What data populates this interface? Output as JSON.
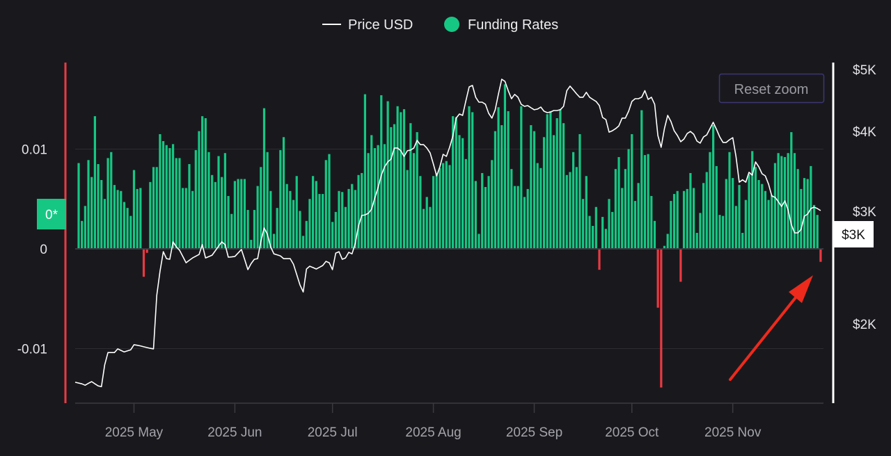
{
  "legend": {
    "price_label": "Price USD",
    "funding_label": "Funding Rates"
  },
  "reset_zoom_label": "Reset zoom",
  "crosshair": {
    "left_label": "0*",
    "right_label": "$3K"
  },
  "colors": {
    "background": "#19191d",
    "positive_bar": "#16c784",
    "negative_bar": "#ea3943",
    "price_line": "#ffffff",
    "left_axis_line": "#ea3943",
    "right_axis_line": "#ffffff",
    "annotation_arrow": "#ee2a1c",
    "reset_border": "#3c3575"
  },
  "chart_data": {
    "type": "bar+line",
    "title": "",
    "grid": true,
    "legend_position": "top-center",
    "x_axis": {
      "tick_labels": [
        "2025 May",
        "2025 Jun",
        "2025 Jul",
        "2025 Aug",
        "2025 Sep",
        "2025 Oct",
        "2025 Nov"
      ],
      "tick_dates": [
        "2025-05-01",
        "2025-06-01",
        "2025-07-01",
        "2025-08-01",
        "2025-09-01",
        "2025-10-01",
        "2025-11-01"
      ]
    },
    "y_left": {
      "tick_labels": [
        "0.01",
        "0",
        "-0.01"
      ],
      "tick_values": [
        0.01,
        0,
        -0.01
      ],
      "range": [
        -0.0155,
        0.0185
      ]
    },
    "y_right": {
      "tick_labels": [
        "$5K",
        "$4K",
        "$3K",
        "$2K"
      ],
      "tick_values": [
        5000,
        4000,
        3000,
        2000
      ],
      "scale": "log",
      "range": [
        1450,
        5300
      ]
    },
    "dates": [
      "2025-04-14",
      "2025-04-15",
      "2025-04-16",
      "2025-04-17",
      "2025-04-18",
      "2025-04-19",
      "2025-04-20",
      "2025-04-21",
      "2025-04-22",
      "2025-04-23",
      "2025-04-24",
      "2025-04-25",
      "2025-04-26",
      "2025-04-27",
      "2025-04-28",
      "2025-04-29",
      "2025-04-30",
      "2025-05-01",
      "2025-05-02",
      "2025-05-03",
      "2025-05-04",
      "2025-05-05",
      "2025-05-06",
      "2025-05-07",
      "2025-05-08",
      "2025-05-09",
      "2025-05-10",
      "2025-05-11",
      "2025-05-12",
      "2025-05-13",
      "2025-05-14",
      "2025-05-15",
      "2025-05-16",
      "2025-05-17",
      "2025-05-18",
      "2025-05-19",
      "2025-05-20",
      "2025-05-21",
      "2025-05-22",
      "2025-05-23",
      "2025-05-24",
      "2025-05-25",
      "2025-05-26",
      "2025-05-27",
      "2025-05-28",
      "2025-05-29",
      "2025-05-30",
      "2025-05-31",
      "2025-06-01",
      "2025-06-02",
      "2025-06-03",
      "2025-06-04",
      "2025-06-05",
      "2025-06-06",
      "2025-06-07",
      "2025-06-08",
      "2025-06-09",
      "2025-06-10",
      "2025-06-11",
      "2025-06-12",
      "2025-06-13",
      "2025-06-14",
      "2025-06-15",
      "2025-06-16",
      "2025-06-17",
      "2025-06-18",
      "2025-06-19",
      "2025-06-20",
      "2025-06-21",
      "2025-06-22",
      "2025-06-23",
      "2025-06-24",
      "2025-06-25",
      "2025-06-26",
      "2025-06-27",
      "2025-06-28",
      "2025-06-29",
      "2025-06-30",
      "2025-07-01",
      "2025-07-02",
      "2025-07-03",
      "2025-07-04",
      "2025-07-05",
      "2025-07-06",
      "2025-07-07",
      "2025-07-08",
      "2025-07-09",
      "2025-07-10",
      "2025-07-11",
      "2025-07-12",
      "2025-07-13",
      "2025-07-14",
      "2025-07-15",
      "2025-07-16",
      "2025-07-17",
      "2025-07-18",
      "2025-07-19",
      "2025-07-20",
      "2025-07-21",
      "2025-07-22",
      "2025-07-23",
      "2025-07-24",
      "2025-07-25",
      "2025-07-26",
      "2025-07-27",
      "2025-07-28",
      "2025-07-29",
      "2025-07-30",
      "2025-07-31",
      "2025-08-01",
      "2025-08-02",
      "2025-08-03",
      "2025-08-04",
      "2025-08-05",
      "2025-08-06",
      "2025-08-07",
      "2025-08-08",
      "2025-08-09",
      "2025-08-10",
      "2025-08-11",
      "2025-08-12",
      "2025-08-13",
      "2025-08-14",
      "2025-08-15",
      "2025-08-16",
      "2025-08-17",
      "2025-08-18",
      "2025-08-19",
      "2025-08-20",
      "2025-08-21",
      "2025-08-22",
      "2025-08-23",
      "2025-08-24",
      "2025-08-25",
      "2025-08-26",
      "2025-08-27",
      "2025-08-28",
      "2025-08-29",
      "2025-08-30",
      "2025-08-31",
      "2025-09-01",
      "2025-09-02",
      "2025-09-03",
      "2025-09-04",
      "2025-09-05",
      "2025-09-06",
      "2025-09-07",
      "2025-09-08",
      "2025-09-09",
      "2025-09-10",
      "2025-09-11",
      "2025-09-12",
      "2025-09-13",
      "2025-09-14",
      "2025-09-15",
      "2025-09-16",
      "2025-09-17",
      "2025-09-18",
      "2025-09-19",
      "2025-09-20",
      "2025-09-21",
      "2025-09-22",
      "2025-09-23",
      "2025-09-24",
      "2025-09-25",
      "2025-09-26",
      "2025-09-27",
      "2025-09-28",
      "2025-09-29",
      "2025-09-30",
      "2025-10-01",
      "2025-10-02",
      "2025-10-03",
      "2025-10-04",
      "2025-10-05",
      "2025-10-06",
      "2025-10-07",
      "2025-10-08",
      "2025-10-09",
      "2025-10-10",
      "2025-10-11",
      "2025-10-12",
      "2025-10-13",
      "2025-10-14",
      "2025-10-15",
      "2025-10-16",
      "2025-10-17",
      "2025-10-18",
      "2025-10-19",
      "2025-10-20",
      "2025-10-21",
      "2025-10-22",
      "2025-10-23",
      "2025-10-24",
      "2025-10-25",
      "2025-10-26",
      "2025-10-27",
      "2025-10-28",
      "2025-10-29",
      "2025-10-30",
      "2025-10-31",
      "2025-11-01",
      "2025-11-02",
      "2025-11-03",
      "2025-11-04",
      "2025-11-05",
      "2025-11-06",
      "2025-11-07",
      "2025-11-08",
      "2025-11-09",
      "2025-11-10",
      "2025-11-11",
      "2025-11-12",
      "2025-11-13",
      "2025-11-14",
      "2025-11-15",
      "2025-11-16",
      "2025-11-17",
      "2025-11-18",
      "2025-11-19",
      "2025-11-20",
      "2025-11-21",
      "2025-11-22",
      "2025-11-23",
      "2025-11-24",
      "2025-11-25",
      "2025-11-26",
      "2025-11-27",
      "2025-11-28"
    ],
    "series": [
      {
        "name": "Funding Rates",
        "type": "bar",
        "axis": "left",
        "values": [
          0.0086,
          0.0028,
          0.0043,
          0.0089,
          0.0072,
          0.0133,
          0.0085,
          0.0069,
          0.005,
          0.0091,
          0.0097,
          0.0064,
          0.0059,
          0.0058,
          0.0047,
          0.0041,
          0.0033,
          0.0079,
          0.006,
          0.0061,
          -0.0028,
          -0.0004,
          0.0067,
          0.0082,
          0.0082,
          0.0115,
          0.0108,
          0.0104,
          0.0101,
          0.0105,
          0.0091,
          0.0091,
          0.0061,
          0.0061,
          0.0085,
          0.0058,
          0.0099,
          0.0118,
          0.0133,
          0.0131,
          0.0097,
          0.0074,
          0.0067,
          0.0093,
          0.0072,
          0.0096,
          0.0053,
          0.0035,
          0.0068,
          0.007,
          0.007,
          0.007,
          0.0039,
          0.0009,
          0.0039,
          0.0063,
          0.0082,
          0.0141,
          0.0097,
          0.0058,
          0.0015,
          0.0041,
          0.0099,
          0.0112,
          0.0065,
          0.0058,
          0.0049,
          0.0073,
          0.0038,
          0.0013,
          0.0028,
          0.005,
          0.0073,
          0.0068,
          0.0055,
          0.0055,
          0.0089,
          0.0095,
          0.0027,
          0.0037,
          0.0058,
          0.0057,
          0.0042,
          0.006,
          0.0065,
          0.0059,
          0.0074,
          0.0076,
          0.0155,
          0.0096,
          0.0114,
          0.0101,
          0.0104,
          0.0154,
          0.0105,
          0.0148,
          0.0122,
          0.0125,
          0.0143,
          0.0137,
          0.014,
          0.0079,
          0.0126,
          0.0096,
          0.0117,
          0.0073,
          0.004,
          0.0052,
          0.0042,
          0.0073,
          0.0076,
          0.0081,
          0.0086,
          0.0088,
          0.0084,
          0.0133,
          0.0132,
          0.0114,
          0.0111,
          0.009,
          0.0143,
          0.0137,
          0.0068,
          0.0015,
          0.0076,
          0.0062,
          0.0073,
          0.0089,
          0.0118,
          0.0142,
          0.0124,
          0.0165,
          0.0138,
          0.008,
          0.0063,
          0.0063,
          0.0143,
          0.0052,
          0.006,
          0.0124,
          0.0118,
          0.0086,
          0.0081,
          0.0112,
          0.0135,
          0.0138,
          0.0114,
          0.0131,
          0.014,
          0.0126,
          0.0074,
          0.0077,
          0.0097,
          0.0082,
          0.0115,
          0.005,
          0.0073,
          0.0033,
          0.0023,
          0.0042,
          -0.0021,
          0.0032,
          0.002,
          0.005,
          0.0037,
          0.008,
          0.0092,
          0.0061,
          0.008,
          0.01,
          0.0115,
          0.0048,
          0.0066,
          0.0139,
          0.0094,
          0.0095,
          0.0053,
          0.0028,
          -0.0059,
          -0.0139,
          0.0003,
          0.0015,
          0.0048,
          0.0055,
          0.0058,
          -0.0033,
          0.0058,
          0.006,
          0.0076,
          0.0061,
          0.0016,
          0.0036,
          0.0066,
          0.0077,
          0.0097,
          0.0124,
          0.0083,
          0.0034,
          0.0033,
          0.007,
          0.0097,
          0.0071,
          0.0043,
          0.0064,
          0.0016,
          0.0049,
          0.0075,
          0.0098,
          0.0082,
          0.0069,
          0.0065,
          0.0058,
          0.0049,
          0.0054,
          0.0086,
          0.0096,
          0.0093,
          0.0092,
          0.0096,
          0.0117,
          0.0096,
          0.008,
          0.006,
          0.0071,
          0.007,
          0.0083,
          0.0044,
          0.0034,
          -0.0013
        ]
      },
      {
        "name": "Price USD",
        "type": "line",
        "axis": "right",
        "values": [
          1621,
          1612,
          1604,
          1615,
          1625,
          1612,
          1600,
          1596,
          1726,
          1804,
          1804,
          1804,
          1828,
          1818,
          1808,
          1815,
          1822,
          1856,
          1852,
          1848,
          1842,
          1837,
          1832,
          1828,
          2216,
          2419,
          2594,
          2530,
          2524,
          2687,
          2640,
          2608,
          2550,
          2493,
          2515,
          2536,
          2552,
          2568,
          2661,
          2536,
          2549,
          2562,
          2604,
          2647,
          2687,
          2661,
          2543,
          2546,
          2550,
          2582,
          2615,
          2524,
          2432,
          2486,
          2524,
          2530,
          2694,
          2825,
          2762,
          2640,
          2574,
          2565,
          2555,
          2530,
          2530,
          2530,
          2480,
          2390,
          2302,
          2244,
          2437,
          2462,
          2450,
          2437,
          2452,
          2468,
          2505,
          2493,
          2432,
          2581,
          2594,
          2524,
          2536,
          2588,
          2574,
          2674,
          2846,
          2955,
          2962,
          2978,
          3023,
          3146,
          3267,
          3417,
          3521,
          3584,
          3620,
          3768,
          3768,
          3731,
          3656,
          3731,
          3740,
          3768,
          3872,
          3814,
          3814,
          3768,
          3702,
          3557,
          3408,
          3521,
          3683,
          3656,
          3778,
          3932,
          4196,
          4259,
          4238,
          4467,
          4695,
          4720,
          4524,
          4444,
          4444,
          4410,
          4270,
          4196,
          4324,
          4580,
          4826,
          4790,
          4633,
          4500,
          4570,
          4524,
          4410,
          4378,
          4390,
          4356,
          4324,
          4335,
          4367,
          4302,
          4280,
          4290,
          4313,
          4313,
          4324,
          4378,
          4633,
          4708,
          4645,
          4580,
          4524,
          4524,
          4605,
          4524,
          4489,
          4456,
          4390,
          4206,
          4174,
          3990,
          4010,
          4040,
          4080,
          4196,
          4196,
          4302,
          4456,
          4500,
          4500,
          4524,
          4633,
          4489,
          4524,
          4410,
          3941,
          3778,
          4040,
          4238,
          4144,
          4010,
          3941,
          3854,
          3891,
          3970,
          4000,
          3960,
          3863,
          3835,
          3920,
          3950,
          4040,
          4133,
          4030,
          3920,
          3844,
          3844,
          3882,
          3910,
          3656,
          3332,
          3360,
          3332,
          3452,
          3417,
          3584,
          3521,
          3434,
          3408,
          3308,
          3170,
          3155,
          3107,
          3053,
          3115,
          3015,
          2860,
          2776,
          2776,
          2810,
          2948,
          2970,
          3030,
          3045,
          3030,
          3008
        ]
      }
    ]
  }
}
